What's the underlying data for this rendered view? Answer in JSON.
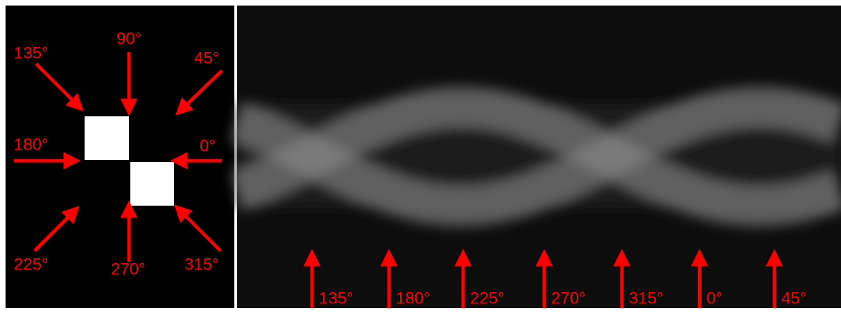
{
  "left_panel": {
    "labels": {
      "a135": "135°",
      "a90": "90°",
      "a45": "45°",
      "a180": "180°",
      "a0": "0°",
      "a225": "225°",
      "a270": "270°",
      "a315": "315°"
    }
  },
  "sinogram": {
    "labels": [
      "135°",
      "180°",
      "225°",
      "270°",
      "315°",
      "0°",
      "45°"
    ]
  }
}
